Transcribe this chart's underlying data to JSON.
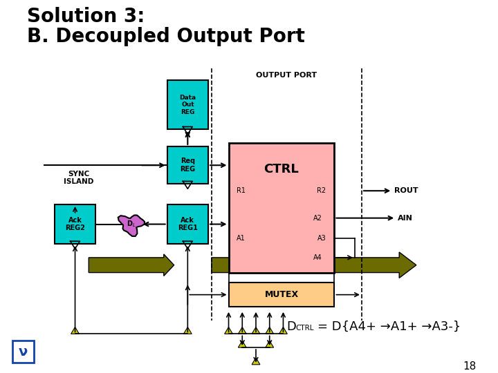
{
  "title_line1": "Solution 3:",
  "title_line2": "B. Decoupled Output Port",
  "background_color": "#ffffff",
  "title_color": "#000000",
  "title_fontsize": 20,
  "page_number": "18",
  "output_port_label": "OUTPUT PORT",
  "sync_island_label": "SYNC\nISLAND",
  "rout_label": "ROUT",
  "ain_label": "AIN",
  "data_arrow_color": "#6b6b00",
  "cyan_color": "#00cccc",
  "pink_color": "#ffb0b0",
  "mutex_color": "#ffcc88",
  "magenta_color": "#cc66cc",
  "arrow_color": "#cccc00"
}
